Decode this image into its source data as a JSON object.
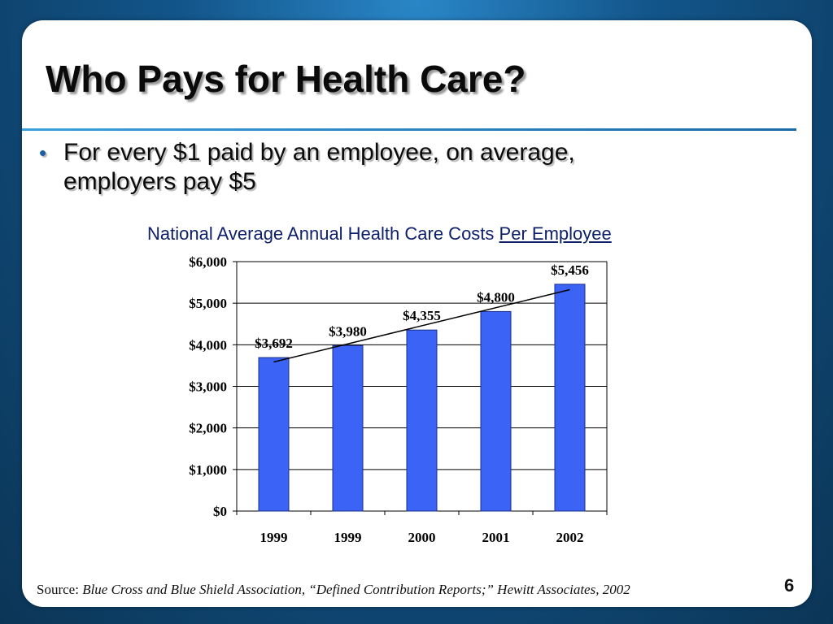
{
  "slide": {
    "title": "Who Pays for Health Care?",
    "bullet": "For every $1 paid by an employee, on average, employers pay $5",
    "bullet_symbol": "•",
    "source_label": "Source:",
    "source_text": "Blue Cross and Blue Shield Association, “Defined Contribution Reports;” Hewitt Associates, 2002",
    "page_number": "6"
  },
  "colors": {
    "bar_fill": "#3b63f5",
    "bar_stroke": "#1a2f8a",
    "trendline": "#000000",
    "chart_title": "#0d1f6a"
  },
  "chart_data": {
    "type": "bar",
    "title_plain": "National Average Annual Health Care Costs",
    "title_underlined": "Per Employee",
    "categories": [
      "1999",
      "1999",
      "2000",
      "2001",
      "2002"
    ],
    "values": [
      3692,
      3980,
      4355,
      4800,
      5456
    ],
    "data_labels": [
      "$3,692",
      "$3,980",
      "$4,355",
      "$4,800",
      "$5,456"
    ],
    "y_ticks": [
      0,
      1000,
      2000,
      3000,
      4000,
      5000,
      6000
    ],
    "y_tick_labels": [
      "$0",
      "$1,000",
      "$2,000",
      "$3,000",
      "$4,000",
      "$5,000",
      "$6,000"
    ],
    "ylim": [
      0,
      6000
    ],
    "grid": true,
    "legend": "none",
    "trendline": "linear"
  }
}
